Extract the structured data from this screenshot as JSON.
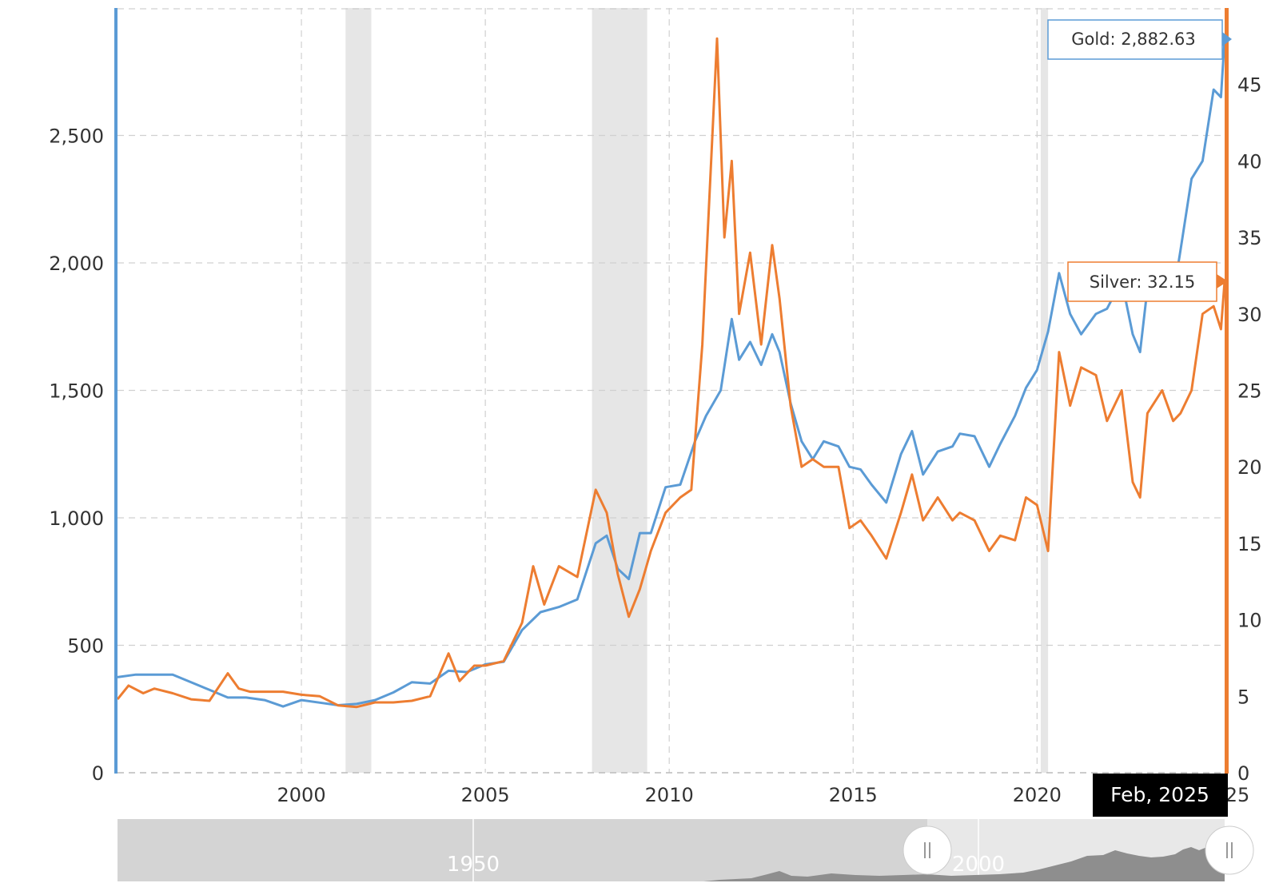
{
  "chart_data": {
    "type": "line",
    "series": [
      {
        "name": "Gold",
        "color": "#5b9bd5",
        "axis": "left",
        "points": [
          [
            1995.0,
            375
          ],
          [
            1995.5,
            385
          ],
          [
            1996.0,
            385
          ],
          [
            1996.5,
            385
          ],
          [
            1997.0,
            355
          ],
          [
            1997.5,
            325
          ],
          [
            1998.0,
            295
          ],
          [
            1998.5,
            295
          ],
          [
            1999.0,
            285
          ],
          [
            1999.5,
            260
          ],
          [
            2000.0,
            285
          ],
          [
            2000.5,
            275
          ],
          [
            2001.0,
            265
          ],
          [
            2001.5,
            270
          ],
          [
            2002.0,
            285
          ],
          [
            2002.5,
            315
          ],
          [
            2003.0,
            355
          ],
          [
            2003.5,
            350
          ],
          [
            2004.0,
            400
          ],
          [
            2004.5,
            395
          ],
          [
            2005.0,
            425
          ],
          [
            2005.5,
            435
          ],
          [
            2006.0,
            560
          ],
          [
            2006.5,
            630
          ],
          [
            2007.0,
            650
          ],
          [
            2007.5,
            680
          ],
          [
            2008.0,
            900
          ],
          [
            2008.3,
            930
          ],
          [
            2008.6,
            800
          ],
          [
            2008.9,
            760
          ],
          [
            2009.2,
            940
          ],
          [
            2009.5,
            940
          ],
          [
            2009.9,
            1120
          ],
          [
            2010.3,
            1130
          ],
          [
            2010.7,
            1300
          ],
          [
            2011.0,
            1400
          ],
          [
            2011.4,
            1500
          ],
          [
            2011.7,
            1780
          ],
          [
            2011.9,
            1620
          ],
          [
            2012.2,
            1690
          ],
          [
            2012.5,
            1600
          ],
          [
            2012.8,
            1720
          ],
          [
            2013.0,
            1650
          ],
          [
            2013.3,
            1450
          ],
          [
            2013.6,
            1300
          ],
          [
            2013.9,
            1230
          ],
          [
            2014.2,
            1300
          ],
          [
            2014.6,
            1280
          ],
          [
            2014.9,
            1200
          ],
          [
            2015.2,
            1190
          ],
          [
            2015.5,
            1130
          ],
          [
            2015.9,
            1060
          ],
          [
            2016.3,
            1250
          ],
          [
            2016.6,
            1340
          ],
          [
            2016.9,
            1170
          ],
          [
            2017.3,
            1260
          ],
          [
            2017.7,
            1280
          ],
          [
            2017.9,
            1330
          ],
          [
            2018.3,
            1320
          ],
          [
            2018.7,
            1200
          ],
          [
            2019.0,
            1290
          ],
          [
            2019.4,
            1400
          ],
          [
            2019.7,
            1510
          ],
          [
            2020.0,
            1580
          ],
          [
            2020.3,
            1730
          ],
          [
            2020.6,
            1960
          ],
          [
            2020.9,
            1800
          ],
          [
            2021.2,
            1720
          ],
          [
            2021.6,
            1800
          ],
          [
            2021.9,
            1820
          ],
          [
            2022.3,
            1930
          ],
          [
            2022.6,
            1720
          ],
          [
            2022.8,
            1650
          ],
          [
            2023.0,
            1900
          ],
          [
            2023.4,
            1990
          ],
          [
            2023.7,
            1870
          ],
          [
            2023.9,
            2050
          ],
          [
            2024.2,
            2330
          ],
          [
            2024.5,
            2400
          ],
          [
            2024.8,
            2680
          ],
          [
            2025.0,
            2650
          ],
          [
            2025.1,
            2882.63
          ]
        ]
      },
      {
        "name": "Silver",
        "color": "#ed7d31",
        "axis": "right",
        "points": [
          [
            1995.0,
            4.8
          ],
          [
            1995.3,
            5.7
          ],
          [
            1995.7,
            5.2
          ],
          [
            1996.0,
            5.5
          ],
          [
            1996.5,
            5.2
          ],
          [
            1997.0,
            4.8
          ],
          [
            1997.5,
            4.7
          ],
          [
            1998.0,
            6.5
          ],
          [
            1998.3,
            5.5
          ],
          [
            1998.6,
            5.3
          ],
          [
            1999.0,
            5.3
          ],
          [
            1999.5,
            5.3
          ],
          [
            2000.0,
            5.1
          ],
          [
            2000.5,
            5.0
          ],
          [
            2001.0,
            4.4
          ],
          [
            2001.5,
            4.3
          ],
          [
            2002.0,
            4.6
          ],
          [
            2002.5,
            4.6
          ],
          [
            2003.0,
            4.7
          ],
          [
            2003.5,
            5.0
          ],
          [
            2004.0,
            7.8
          ],
          [
            2004.3,
            6.0
          ],
          [
            2004.7,
            7.0
          ],
          [
            2005.0,
            7.0
          ],
          [
            2005.5,
            7.3
          ],
          [
            2006.0,
            9.8
          ],
          [
            2006.3,
            13.5
          ],
          [
            2006.6,
            11.0
          ],
          [
            2007.0,
            13.5
          ],
          [
            2007.5,
            12.8
          ],
          [
            2008.0,
            18.5
          ],
          [
            2008.3,
            17.0
          ],
          [
            2008.6,
            13.0
          ],
          [
            2008.9,
            10.2
          ],
          [
            2009.2,
            12.0
          ],
          [
            2009.5,
            14.5
          ],
          [
            2009.9,
            17.0
          ],
          [
            2010.3,
            18.0
          ],
          [
            2010.6,
            18.5
          ],
          [
            2010.9,
            28.0
          ],
          [
            2011.3,
            48.0
          ],
          [
            2011.5,
            35.0
          ],
          [
            2011.7,
            40.0
          ],
          [
            2011.9,
            30.0
          ],
          [
            2012.2,
            34.0
          ],
          [
            2012.5,
            28.0
          ],
          [
            2012.8,
            34.5
          ],
          [
            2013.0,
            31.0
          ],
          [
            2013.3,
            24.0
          ],
          [
            2013.6,
            20.0
          ],
          [
            2013.9,
            20.5
          ],
          [
            2014.2,
            20.0
          ],
          [
            2014.6,
            20.0
          ],
          [
            2014.9,
            16.0
          ],
          [
            2015.2,
            16.5
          ],
          [
            2015.5,
            15.5
          ],
          [
            2015.9,
            14.0
          ],
          [
            2016.3,
            17.0
          ],
          [
            2016.6,
            19.5
          ],
          [
            2016.9,
            16.5
          ],
          [
            2017.3,
            18.0
          ],
          [
            2017.7,
            16.5
          ],
          [
            2017.9,
            17.0
          ],
          [
            2018.3,
            16.5
          ],
          [
            2018.7,
            14.5
          ],
          [
            2019.0,
            15.5
          ],
          [
            2019.4,
            15.2
          ],
          [
            2019.7,
            18.0
          ],
          [
            2020.0,
            17.5
          ],
          [
            2020.3,
            14.5
          ],
          [
            2020.6,
            27.5
          ],
          [
            2020.9,
            24.0
          ],
          [
            2021.2,
            26.5
          ],
          [
            2021.6,
            26.0
          ],
          [
            2021.9,
            23.0
          ],
          [
            2022.3,
            25.0
          ],
          [
            2022.6,
            19.0
          ],
          [
            2022.8,
            18.0
          ],
          [
            2023.0,
            23.5
          ],
          [
            2023.4,
            25.0
          ],
          [
            2023.7,
            23.0
          ],
          [
            2023.9,
            23.5
          ],
          [
            2024.2,
            25.0
          ],
          [
            2024.5,
            30.0
          ],
          [
            2024.8,
            30.5
          ],
          [
            2025.0,
            29.0
          ],
          [
            2025.1,
            32.15
          ]
        ]
      }
    ],
    "recessions": [
      [
        2001.2,
        2001.9
      ],
      [
        2007.9,
        2009.4
      ],
      [
        2020.1,
        2020.3
      ]
    ],
    "xlim": [
      1995.0,
      2025.1
    ],
    "xticks": [
      2000,
      2005,
      2010,
      2015,
      2020
    ],
    "y_left": {
      "lim": [
        0,
        3000
      ],
      "ticks": [
        0,
        500,
        1000,
        1500,
        2000,
        2500
      ],
      "labels": [
        "0",
        "500",
        "1,000",
        "1,500",
        "2,000",
        "2,500"
      ]
    },
    "y_right": {
      "lim": [
        0,
        50
      ],
      "ticks": [
        0,
        5,
        10,
        15,
        20,
        25,
        30,
        35,
        40,
        45
      ],
      "labels": [
        "0",
        "5",
        "10",
        "15",
        "20",
        "25",
        "30",
        "35",
        "40",
        "45"
      ]
    },
    "grid": true,
    "tooltips": {
      "gold": {
        "label": "Gold",
        "value": "2,882.63",
        "text": "Gold: 2,882.63"
      },
      "silver": {
        "label": "Silver",
        "value": "32.15",
        "text": "Silver: 32.15"
      }
    },
    "date_badge": "Feb, 2025",
    "navigator": {
      "labels": [
        "1950",
        "2000"
      ]
    },
    "partial_tick": "25"
  }
}
